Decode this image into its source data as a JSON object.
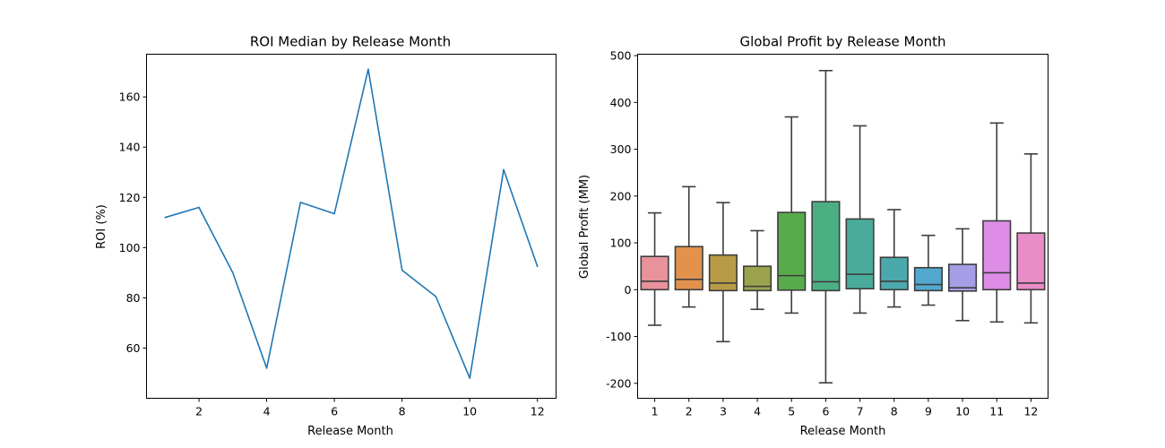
{
  "chart_data": [
    {
      "type": "line",
      "title": "ROI Median by Release Month",
      "xlabel": "Release Month",
      "ylabel": "ROI (%)",
      "x": [
        1,
        2,
        3,
        4,
        5,
        6,
        7,
        8,
        9,
        10,
        11,
        12
      ],
      "y": [
        112,
        116,
        90,
        52,
        118,
        113.5,
        171,
        91,
        80.5,
        48,
        131,
        92.5
      ],
      "xlim": [
        0.45,
        12.55
      ],
      "ylim": [
        40,
        177
      ],
      "xticks": [
        2,
        4,
        6,
        8,
        10,
        12
      ],
      "yticks": [
        60,
        80,
        100,
        120,
        140,
        160
      ],
      "line_color": "#1f77b4",
      "grid": false
    },
    {
      "type": "box",
      "title": "Global Profit by Release Month",
      "xlabel": "Release Month",
      "ylabel": "Global Profit (MM)",
      "categories": [
        "1",
        "2",
        "3",
        "4",
        "5",
        "6",
        "7",
        "8",
        "9",
        "10",
        "11",
        "12"
      ],
      "boxes": [
        {
          "whisker_low": -76,
          "q1": 0,
          "median": 18,
          "q3": 71,
          "whisker_high": 164,
          "color": "#e8929c"
        },
        {
          "whisker_low": -37,
          "q1": 0,
          "median": 22,
          "q3": 92,
          "whisker_high": 220,
          "color": "#e2924d"
        },
        {
          "whisker_low": -111,
          "q1": -2,
          "median": 14,
          "q3": 74,
          "whisker_high": 186,
          "color": "#b89b47"
        },
        {
          "whisker_low": -42,
          "q1": -2,
          "median": 7,
          "q3": 50,
          "whisker_high": 126,
          "color": "#9aa24c"
        },
        {
          "whisker_low": -50,
          "q1": -1,
          "median": 30,
          "q3": 165,
          "whisker_high": 369,
          "color": "#58ab4a"
        },
        {
          "whisker_low": -199,
          "q1": -2,
          "median": 17,
          "q3": 188,
          "whisker_high": 468,
          "color": "#4caf84"
        },
        {
          "whisker_low": -50,
          "q1": 2,
          "median": 33,
          "q3": 151,
          "whisker_high": 350,
          "color": "#4aab9b"
        },
        {
          "whisker_low": -37,
          "q1": 0,
          "median": 18,
          "q3": 69,
          "whisker_high": 171,
          "color": "#4ba9ad"
        },
        {
          "whisker_low": -33,
          "q1": -2,
          "median": 11,
          "q3": 47,
          "whisker_high": 116,
          "color": "#52a8ce"
        },
        {
          "whisker_low": -66,
          "q1": -3,
          "median": 4,
          "q3": 54,
          "whisker_high": 130,
          "color": "#a59ee6"
        },
        {
          "whisker_low": -69,
          "q1": 0,
          "median": 36,
          "q3": 147,
          "whisker_high": 356,
          "color": "#dd8de6"
        },
        {
          "whisker_low": -71,
          "q1": 0,
          "median": 14,
          "q3": 121,
          "whisker_high": 290,
          "color": "#e98cc7"
        }
      ],
      "ylim": [
        -232,
        503
      ],
      "yticks": [
        -200,
        -100,
        0,
        100,
        200,
        300,
        400,
        500
      ],
      "grid": false
    }
  ]
}
